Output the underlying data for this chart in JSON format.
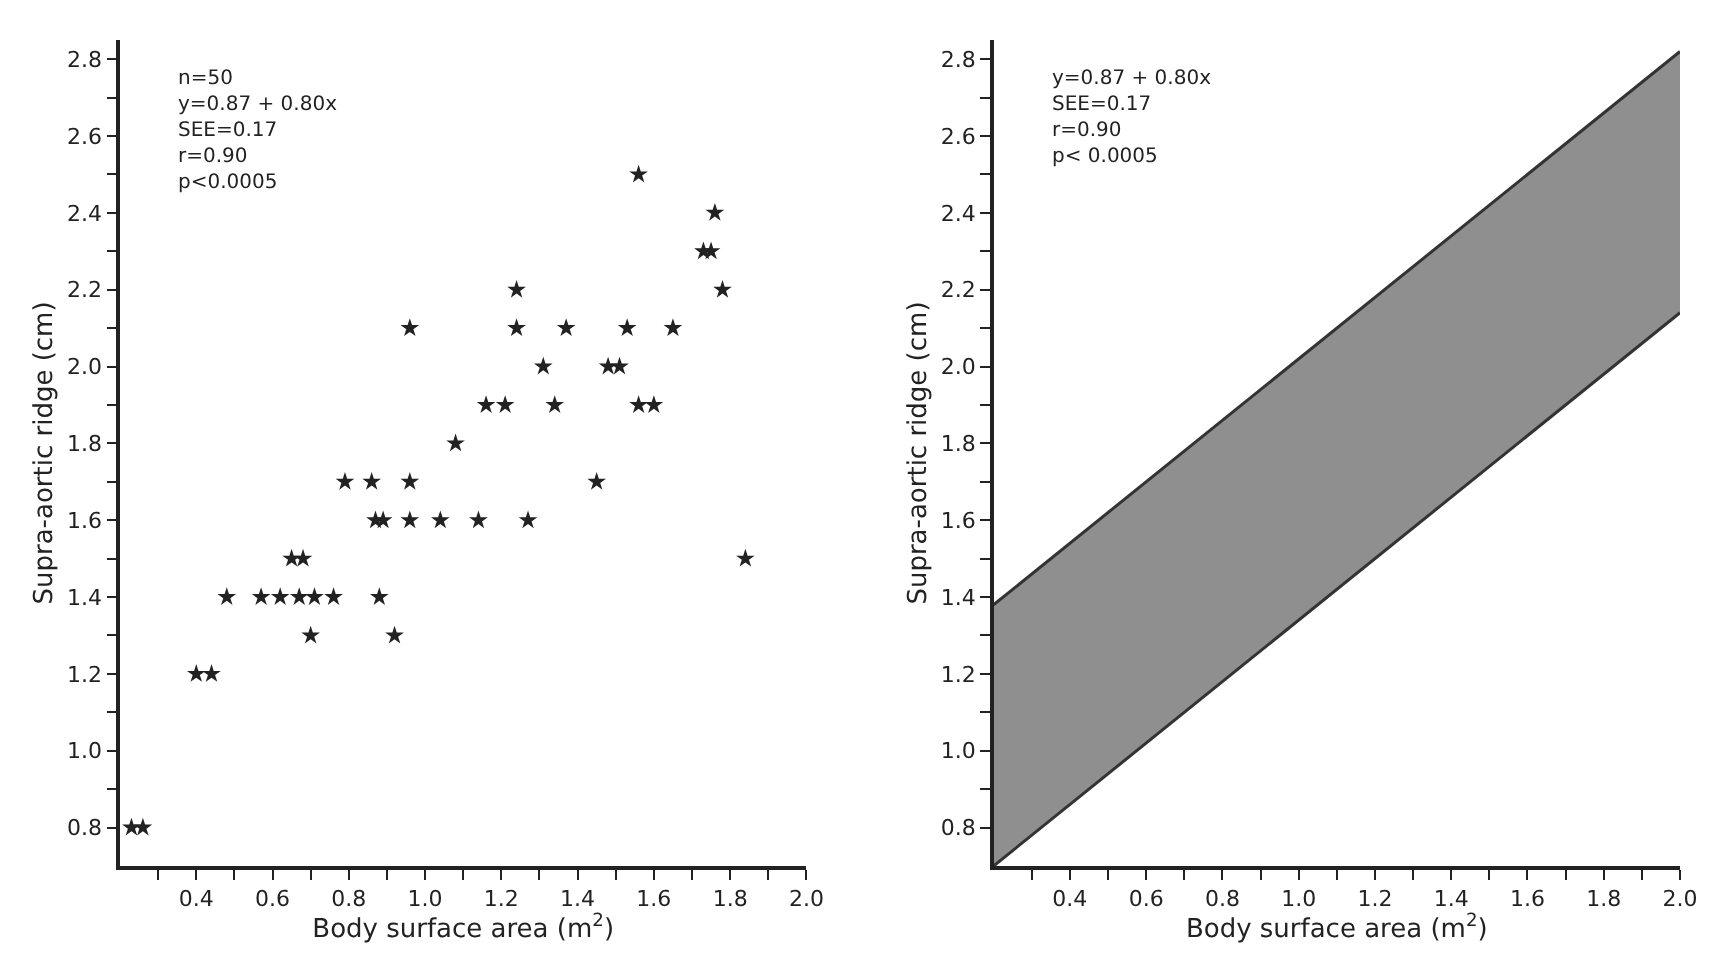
{
  "chart_data": [
    {
      "type": "scatter",
      "xlabel": "Body surface area (m$^{2}$)",
      "ylabel": "Supra-aortic ridge (cm)",
      "marker": "star",
      "xlim": [
        0.2,
        2.0
      ],
      "ylim": [
        0.7,
        2.85
      ],
      "xticks": [
        {
          "value": 0.3,
          "label": null
        },
        0.4,
        {
          "value": 0.5,
          "label": null
        },
        0.6,
        {
          "value": 0.7,
          "label": null
        },
        0.8,
        {
          "value": 0.9,
          "label": null
        },
        {
          "value": 1.0,
          "label": "1.0"
        },
        {
          "value": 1.1,
          "label": null
        },
        1.2,
        {
          "value": 1.3,
          "label": null
        },
        1.4,
        {
          "value": 1.5,
          "label": null
        },
        1.6,
        {
          "value": 1.7,
          "label": null
        },
        1.8,
        {
          "value": 1.9,
          "label": null
        },
        {
          "value": 2.0,
          "label": "2.0"
        }
      ],
      "yticks": [
        0.8,
        {
          "value": 0.9,
          "label": null
        },
        {
          "value": 1.0,
          "label": "1.0"
        },
        {
          "value": 1.1,
          "label": null
        },
        1.2,
        {
          "value": 1.3,
          "label": null
        },
        1.4,
        {
          "value": 1.5,
          "label": null
        },
        1.6,
        {
          "value": 1.7,
          "label": null
        },
        1.8,
        {
          "value": 1.9,
          "label": null
        },
        {
          "value": 2.0,
          "label": "2.0"
        },
        {
          "value": 2.1,
          "label": null
        },
        2.2,
        {
          "value": 2.3,
          "label": null
        },
        2.4,
        {
          "value": 2.5,
          "label": null
        },
        2.6,
        {
          "value": 2.7,
          "label": null
        },
        2.8
      ],
      "series": [
        {
          "color": "#222222",
          "x": [
            0.23,
            0.26,
            0.4,
            0.44,
            0.7,
            0.92,
            0.48,
            0.57,
            0.62,
            0.67,
            0.71,
            0.76,
            0.88,
            0.65,
            0.68,
            1.84,
            0.87,
            0.89,
            0.96,
            1.04,
            1.14,
            1.27,
            0.79,
            0.86,
            0.96,
            1.45,
            1.08,
            1.16,
            1.21,
            1.34,
            1.56,
            1.6,
            1.31,
            1.48,
            1.51,
            0.96,
            1.24,
            1.37,
            1.53,
            1.65,
            1.24,
            1.78,
            1.73,
            1.75,
            1.76,
            1.56
          ],
          "values": [
            0.8,
            0.8,
            1.2,
            1.2,
            1.3,
            1.3,
            1.4,
            1.4,
            1.4,
            1.4,
            1.4,
            1.4,
            1.4,
            1.5,
            1.5,
            1.5,
            1.6,
            1.6,
            1.6,
            1.6,
            1.6,
            1.6,
            1.7,
            1.7,
            1.7,
            1.7,
            1.8,
            1.9,
            1.9,
            1.9,
            1.9,
            1.9,
            2.0,
            2.0,
            2.0,
            2.1,
            2.1,
            2.1,
            2.1,
            2.1,
            2.2,
            2.2,
            2.3,
            2.3,
            2.4,
            2.5
          ]
        }
      ],
      "annotations": [
        "n=50\ny=0.87 + 0.80x\nSEE=0.17\nr=0.90\np<0.0005"
      ]
    },
    {
      "type": "area",
      "xlabel": "Body surface area (m$^{2}$)",
      "ylabel": "Supra-aortic ridge (cm)",
      "xlim": [
        0.2,
        2.0
      ],
      "ylim": [
        0.7,
        2.85
      ],
      "xticks": [
        {
          "value": 0.3,
          "label": null
        },
        0.4,
        {
          "value": 0.5,
          "label": null
        },
        0.6,
        {
          "value": 0.7,
          "label": null
        },
        0.8,
        {
          "value": 0.9,
          "label": null
        },
        {
          "value": 1.0,
          "label": "1.0"
        },
        {
          "value": 1.1,
          "label": null
        },
        1.2,
        {
          "value": 1.3,
          "label": null
        },
        1.4,
        {
          "value": 1.5,
          "label": null
        },
        1.6,
        {
          "value": 1.7,
          "label": null
        },
        1.8,
        {
          "value": 1.9,
          "label": null
        },
        {
          "value": 2.0,
          "label": "2.0"
        }
      ],
      "yticks": [
        0.8,
        {
          "value": 0.9,
          "label": null
        },
        {
          "value": 1.0,
          "label": "1.0"
        },
        {
          "value": 1.1,
          "label": null
        },
        1.2,
        {
          "value": 1.3,
          "label": null
        },
        1.4,
        {
          "value": 1.5,
          "label": null
        },
        1.6,
        {
          "value": 1.7,
          "label": null
        },
        1.8,
        {
          "value": 1.9,
          "label": null
        },
        {
          "value": 2.0,
          "label": "2.0"
        },
        {
          "value": 2.1,
          "label": null
        },
        2.2,
        {
          "value": 2.3,
          "label": null
        },
        2.4,
        {
          "value": 2.5,
          "label": null
        },
        2.6,
        {
          "value": 2.7,
          "label": null
        },
        2.8
      ],
      "series": [
        {
          "type": "line",
          "color": "#333333",
          "x": [
            0.2,
            2.0
          ],
          "values": [
            0.7,
            2.14
          ]
        },
        {
          "type": "area",
          "color": "#333333",
          "x": [
            0.2,
            2.0
          ],
          "values": [
            1.38,
            2.82
          ]
        }
      ],
      "annotations": [
        "y=0.87 + 0.80x\nSEE=0.17\nr=0.90\np< 0.0005"
      ]
    }
  ]
}
